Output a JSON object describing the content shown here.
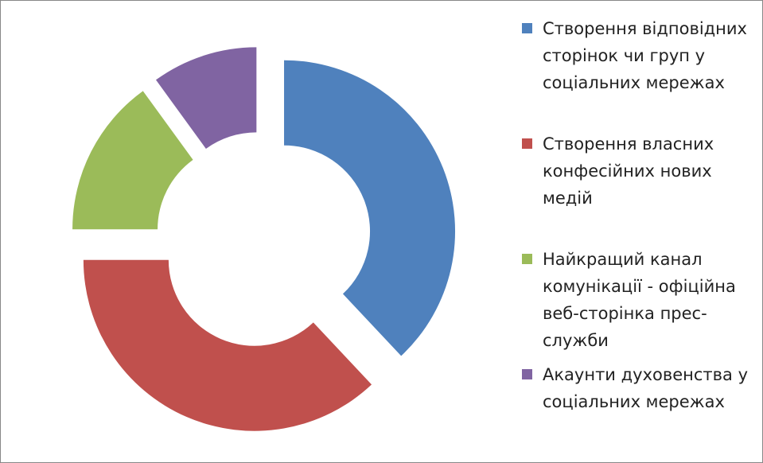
{
  "chart_data": {
    "type": "donut",
    "categories": [
      "Створення відповідних сторінок чи груп у соціальних мережах",
      "Створення власних конфесійних нових медій",
      "Найкращий канал комунікації - офіційна веб-сторінка прес-служби",
      "Акаунти духовенства у соціальних мережах"
    ],
    "values": [
      38,
      37,
      15,
      10
    ],
    "colors": [
      "#4f81bd",
      "#c0504d",
      "#9bbb59",
      "#8064a2"
    ],
    "legend": "right"
  }
}
